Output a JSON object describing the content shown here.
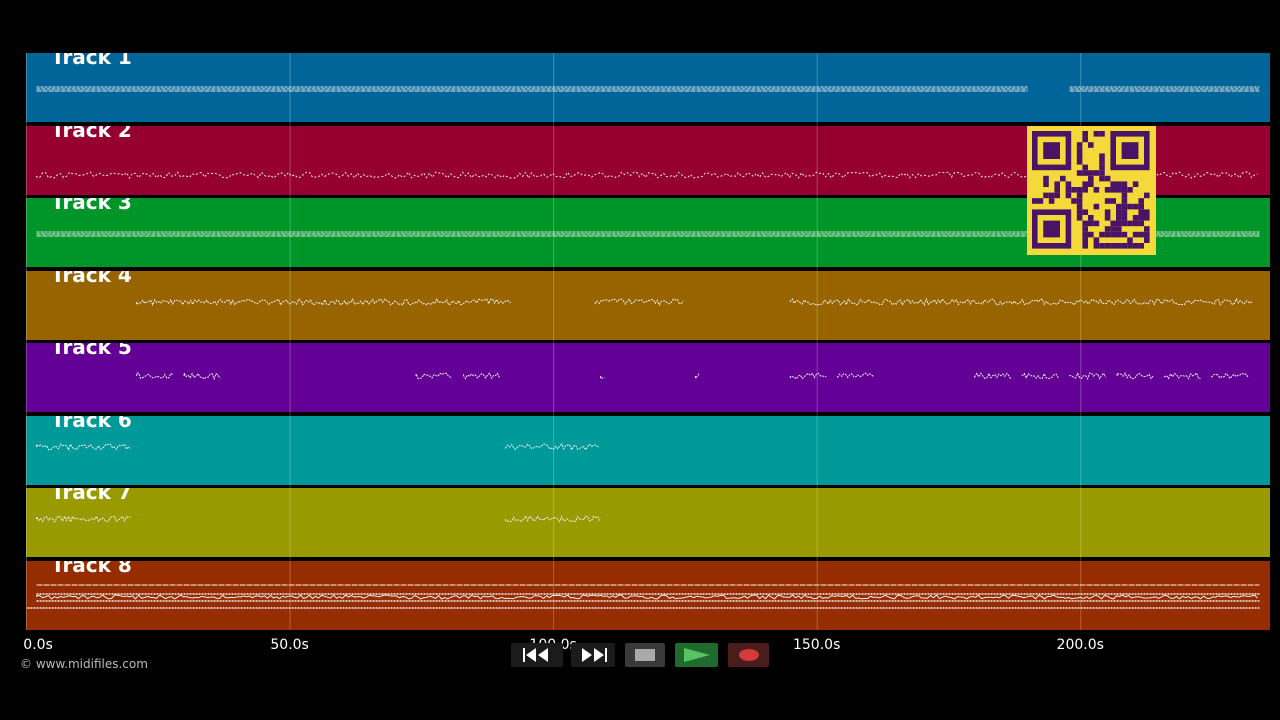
{
  "tracks": [
    {
      "label": "Track 1",
      "color": "#02659a",
      "pattern": "dashes",
      "segments": [
        [
          2,
          190
        ],
        [
          198,
          234
        ]
      ]
    },
    {
      "label": "Track 2",
      "color": "#950031",
      "pattern": "zigzag",
      "segments": [
        [
          2,
          234
        ]
      ]
    },
    {
      "label": "Track 3",
      "color": "#009529",
      "pattern": "dashes",
      "segments": [
        [
          2,
          234
        ]
      ]
    },
    {
      "label": "Track 4",
      "color": "#986400",
      "pattern": "wave",
      "segments": [
        [
          21,
          92
        ],
        [
          108,
          125
        ],
        [
          145,
          233
        ]
      ]
    },
    {
      "label": "Track 5",
      "color": "#630095",
      "pattern": "clusters",
      "segments": [
        [
          21,
          28
        ],
        [
          30,
          37
        ],
        [
          74,
          81
        ],
        [
          83,
          90
        ],
        [
          109,
          110
        ],
        [
          127,
          128
        ],
        [
          145,
          152
        ],
        [
          154,
          161
        ],
        [
          180,
          187
        ],
        [
          189,
          196
        ],
        [
          198,
          205
        ],
        [
          207,
          214
        ],
        [
          216,
          223
        ],
        [
          225,
          232
        ]
      ]
    },
    {
      "label": "Track 6",
      "color": "#009999",
      "pattern": "wave",
      "segments": [
        [
          2,
          20
        ],
        [
          91,
          109
        ]
      ]
    },
    {
      "label": "Track 7",
      "color": "#999900",
      "pattern": "wave",
      "segments": [
        [
          2,
          20
        ],
        [
          91,
          109
        ]
      ]
    },
    {
      "label": "Track 8",
      "color": "#952d00",
      "pattern": "dense",
      "segments": [
        [
          2,
          234
        ]
      ]
    }
  ],
  "axis": {
    "ticks": [
      "0.0s",
      "50.0s",
      "100.0s",
      "150.0s",
      "200.0s"
    ],
    "tick_values": [
      0,
      50,
      100,
      150,
      200
    ],
    "max_seconds": 236
  },
  "copyright": "© www.midifiles.com",
  "transport": {
    "rewind_icon": "rewind-icon",
    "forward_icon": "fast-forward-icon",
    "stop_icon": "stop-icon",
    "play_icon": "play-icon",
    "record_icon": "record-icon"
  },
  "qr": {
    "color": "#f5d93b",
    "ink": "#4a1466"
  }
}
